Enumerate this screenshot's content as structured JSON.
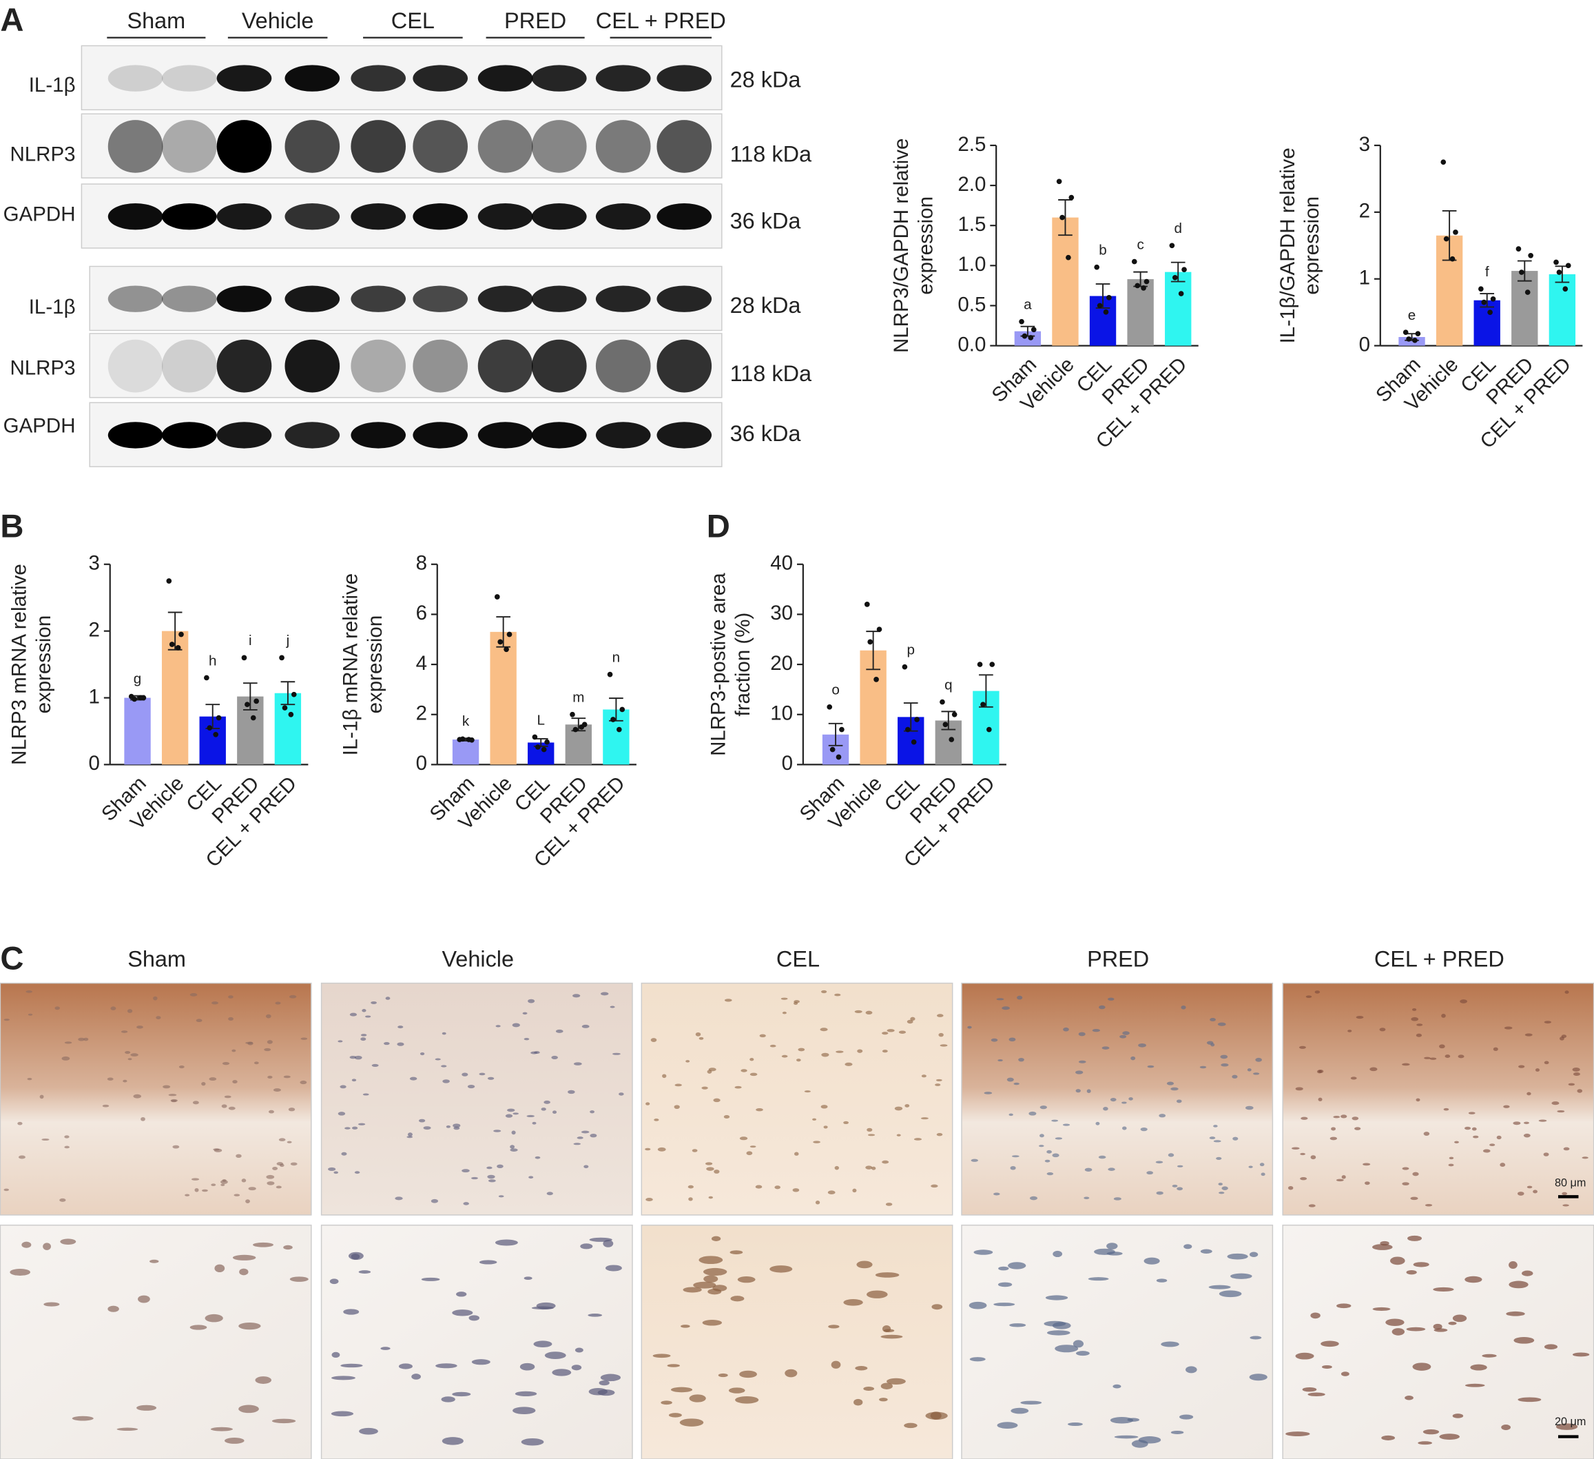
{
  "panel_labels": [
    "A",
    "B",
    "C",
    "D"
  ],
  "western_blot": {
    "groups": [
      "Sham",
      "Vehicle",
      "CEL",
      "PRED",
      "CEL + PRED"
    ],
    "blots": [
      [
        {
          "protein": "IL-1β",
          "size": "28 kDa"
        },
        {
          "protein": "NLRP3",
          "size": "118 kDa"
        },
        {
          "protein": "GAPDH",
          "size": "36 kDa"
        }
      ],
      [
        {
          "protein": "IL-1β",
          "size": "28 kDa"
        },
        {
          "protein": "NLRP3",
          "size": "118 kDa"
        },
        {
          "protein": "GAPDH",
          "size": "36 kDa"
        }
      ]
    ]
  },
  "ihc": {
    "groups": [
      "Sham",
      "Vehicle",
      "CEL",
      "PRED",
      "CEL + PRED"
    ],
    "scale_bars": [
      "80 μm",
      "20 μm"
    ]
  },
  "chart_data": [
    {
      "type": "bar",
      "ylabel": [
        "NLRP3/GAPDH relative",
        "expression"
      ],
      "categories": [
        "Sham",
        "Vehicle",
        "CEL",
        "PRED",
        "CEL + PRED"
      ],
      "colors": [
        "#9999f5",
        "#f9be86",
        "#0a14e6",
        "#9a9a9a",
        "#2ff5f0"
      ],
      "values": [
        0.18,
        1.6,
        0.62,
        0.83,
        0.92
      ],
      "errors": [
        0.06,
        0.22,
        0.15,
        0.09,
        0.12
      ],
      "points": [
        [
          0.3,
          0.2,
          0.12,
          0.1
        ],
        [
          2.05,
          1.85,
          1.6,
          1.1
        ],
        [
          0.98,
          0.6,
          0.5,
          0.42
        ],
        [
          1.05,
          0.8,
          0.75,
          0.72
        ],
        [
          1.25,
          0.95,
          0.85,
          0.65
        ]
      ],
      "annotations": [
        "a",
        null,
        "b",
        "c",
        "d"
      ],
      "ylim": [
        0,
        2.5
      ],
      "yticks": [
        {
          "value": 0,
          "label": "0.0"
        },
        0.5,
        {
          "value": 1,
          "label": "1.0"
        },
        1.5,
        {
          "value": 2,
          "label": "2.0"
        },
        2.5
      ]
    },
    {
      "type": "bar",
      "ylabel": [
        "IL-1β/GAPDH relative",
        "expression"
      ],
      "categories": [
        "Sham",
        "Vehicle",
        "CEL",
        "PRED",
        "CEL + PRED"
      ],
      "colors": [
        "#9999f5",
        "#f9be86",
        "#0a14e6",
        "#9a9a9a",
        "#2ff5f0"
      ],
      "values": [
        0.13,
        1.65,
        0.68,
        1.12,
        1.07
      ],
      "errors": [
        0.05,
        0.37,
        0.1,
        0.15,
        0.12
      ],
      "points": [
        [
          0.2,
          0.18,
          0.1,
          0.08
        ],
        [
          2.75,
          1.7,
          1.6,
          1.3
        ],
        [
          0.85,
          0.7,
          0.65,
          0.5
        ],
        [
          1.45,
          1.35,
          1.1,
          0.8
        ],
        [
          1.25,
          1.2,
          1.1,
          0.85
        ]
      ],
      "annotations": [
        "e",
        null,
        "f",
        null,
        null
      ],
      "ylim": [
        0,
        3
      ],
      "yticks": [
        0,
        1,
        2,
        3
      ]
    },
    {
      "type": "bar",
      "ylabel": [
        "NLRP3 mRNA relative",
        "expression"
      ],
      "categories": [
        "Sham",
        "Vehicle",
        "CEL",
        "PRED",
        "CEL + PRED"
      ],
      "colors": [
        "#9999f5",
        "#f9be86",
        "#0a14e6",
        "#9a9a9a",
        "#2ff5f0"
      ],
      "values": [
        1.0,
        2.0,
        0.72,
        1.02,
        1.07
      ],
      "errors": [
        0.03,
        0.28,
        0.18,
        0.2,
        0.17
      ],
      "points": [
        [
          1.02,
          1.0,
          0.98,
          1.0
        ],
        [
          2.75,
          1.95,
          1.8,
          1.75
        ],
        [
          1.3,
          0.7,
          0.55,
          0.45
        ],
        [
          1.6,
          0.95,
          0.9,
          0.7
        ],
        [
          1.6,
          1.05,
          0.85,
          0.75
        ]
      ],
      "annotations": [
        "g",
        null,
        "h",
        "i",
        "j"
      ],
      "ylim": [
        0,
        3
      ],
      "yticks": [
        0,
        1,
        2,
        3
      ]
    },
    {
      "type": "bar",
      "ylabel": [
        "IL-1β mRNA relative",
        "expression"
      ],
      "categories": [
        "Sham",
        "Vehicle",
        "CEL",
        "PRED",
        "CEL + PRED"
      ],
      "colors": [
        "#9999f5",
        "#f9be86",
        "#0a14e6",
        "#9a9a9a",
        "#2ff5f0"
      ],
      "values": [
        1.0,
        5.3,
        0.88,
        1.6,
        2.2
      ],
      "errors": [
        0.05,
        0.6,
        0.15,
        0.25,
        0.45
      ],
      "points": [
        [
          1.0,
          0.98,
          1.02,
          1.0
        ],
        [
          6.7,
          5.2,
          4.9,
          4.6
        ],
        [
          1.1,
          0.9,
          0.7,
          0.6
        ],
        [
          2.0,
          1.6,
          1.4,
          1.5
        ],
        [
          3.6,
          2.2,
          1.8,
          1.4
        ]
      ],
      "annotations": [
        "k",
        null,
        "L",
        "m",
        "n"
      ],
      "ylim": [
        0,
        8
      ],
      "yticks": [
        0,
        2,
        4,
        6,
        8
      ]
    },
    {
      "type": "bar",
      "ylabel": [
        "NLRP3-postive area",
        "fraction (%)"
      ],
      "categories": [
        "Sham",
        "Vehicle",
        "CEL",
        "PRED",
        "CEL + PRED"
      ],
      "colors": [
        "#9999f5",
        "#f9be86",
        "#0a14e6",
        "#9a9a9a",
        "#2ff5f0"
      ],
      "values": [
        6,
        22.8,
        9.5,
        8.8,
        14.7
      ],
      "errors": [
        2.2,
        3.8,
        2.8,
        1.8,
        3.2
      ],
      "points": [
        [
          11.5,
          7,
          3,
          1.5
        ],
        [
          32,
          27,
          24.5,
          17
        ],
        [
          19.5,
          9,
          7,
          4.5
        ],
        [
          12.5,
          10,
          8,
          5
        ],
        [
          20,
          20,
          12,
          7
        ]
      ],
      "annotations": [
        "o",
        null,
        "p",
        "q",
        null
      ],
      "ylim": [
        0,
        40
      ],
      "yticks": [
        0,
        10,
        20,
        30,
        40
      ]
    }
  ]
}
